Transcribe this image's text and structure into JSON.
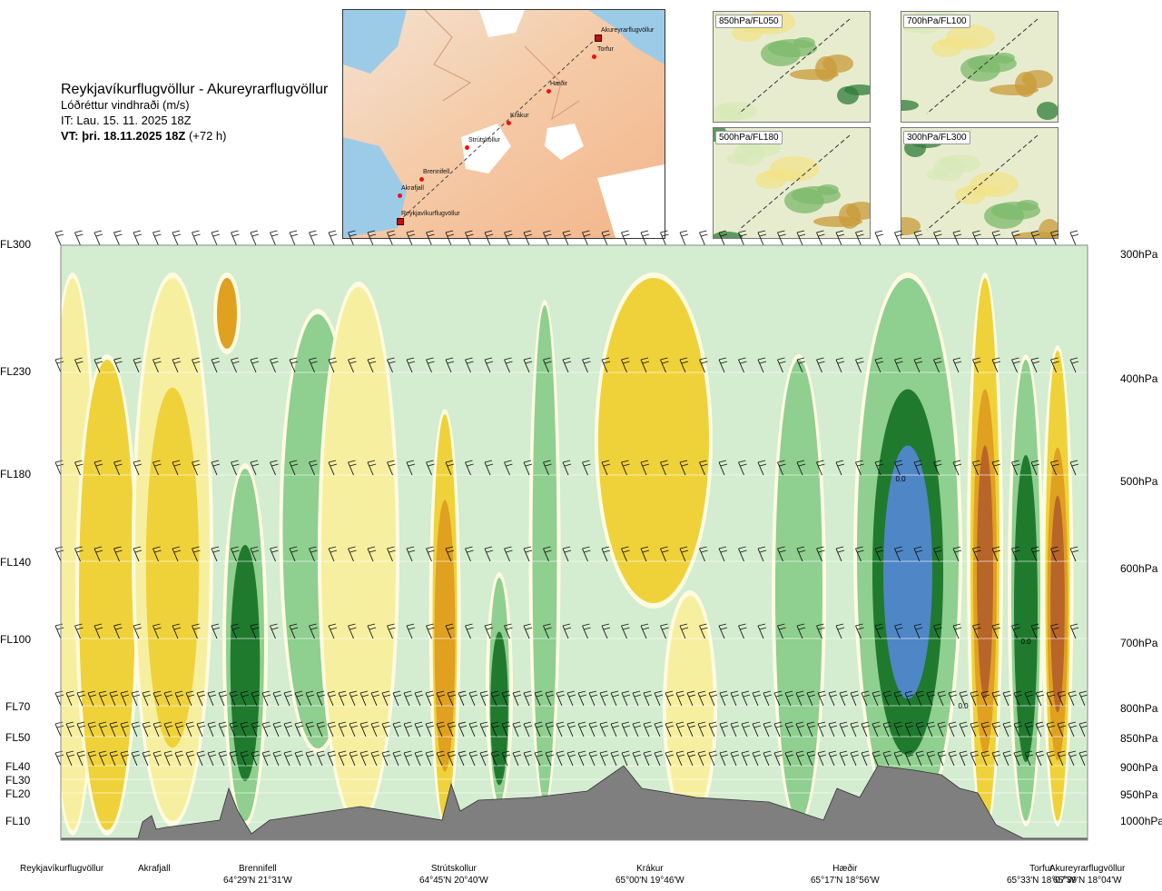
{
  "header": {
    "route": "Reykjavíkurflugvöllur - Akureyrarflugvöllur",
    "parameter": "Lóðréttur vindhraði (m/s)",
    "issue_time": "IT: Lau. 15. 11. 2025 18Z",
    "valid_label": "VT: þri. 18.11.2025 18Z",
    "valid_offset": "(+72 h)"
  },
  "flight_levels": [
    "FL300",
    "FL230",
    "FL180",
    "FL140",
    "FL100",
    "FL70",
    "FL50",
    "FL40",
    "FL30",
    "FL20",
    "FL10"
  ],
  "pressure_levels": [
    "300hPa",
    "400hPa",
    "500hPa",
    "600hPa",
    "700hPa",
    "800hPa",
    "850hPa",
    "900hPa",
    "950hPa",
    "1000hPa"
  ],
  "insets": [
    {
      "label": "850hPa/FL050"
    },
    {
      "label": "700hPa/FL100"
    },
    {
      "label": "500hPa/FL180"
    },
    {
      "label": "300hPa/FL300"
    }
  ],
  "map": {
    "points": [
      {
        "name": "Akureyrarflugvöllur"
      },
      {
        "name": "Torfur"
      },
      {
        "name": "Hæðir"
      },
      {
        "name": "Krákur"
      },
      {
        "name": "Strútskollur"
      },
      {
        "name": "Brennifell"
      },
      {
        "name": "Akrafjall"
      },
      {
        "name": "Reykjavíkurflugvöllur"
      }
    ]
  },
  "locations": [
    {
      "name": "Reykjavíkurflugvöllur",
      "coord": ""
    },
    {
      "name": "Akrafjall",
      "coord": ""
    },
    {
      "name": "Brennifell",
      "coord": "64°29'N 21°31'W"
    },
    {
      "name": "Strútskollur",
      "coord": "64°45'N 20°40'W"
    },
    {
      "name": "Krákur",
      "coord": "65°00'N 19°46'W"
    },
    {
      "name": "Hæðir",
      "coord": "65°17'N 18°56'W"
    },
    {
      "name": "Torfur",
      "coord": "65°33'N 18°07'W"
    },
    {
      "name": "Akureyrarflugvöllur",
      "coord": "65°39'N 18°04'W"
    }
  ],
  "contour_labels": [
    "0.0",
    "0.0",
    "0.0"
  ],
  "colors": {
    "strong_down": "#4f86c6",
    "down": "#1f7a2e",
    "weak_down": "#8fcf8f",
    "very_weak_down": "#d4ecd0",
    "neutral": "#fffbe0",
    "weak_up": "#f7efa0",
    "up": "#efd23a",
    "strong_up": "#e0a020",
    "very_strong_up": "#b8652a",
    "terrain": "#7f7f7f"
  },
  "chart_data": {
    "type": "heatmap",
    "title": "Lóðréttur vindhraði (m/s)",
    "vertical_axis_left": [
      "FL300",
      "FL230",
      "FL180",
      "FL140",
      "FL100",
      "FL70",
      "FL50",
      "FL40",
      "FL30",
      "FL20",
      "FL10"
    ],
    "vertical_axis_right": [
      "300hPa",
      "400hPa",
      "500hPa",
      "600hPa",
      "700hPa",
      "800hPa",
      "850hPa",
      "900hPa",
      "950hPa",
      "1000hPa"
    ],
    "horizontal_axis": [
      "Reykjavíkurflugvöllur",
      "Akrafjall",
      "Brennifell",
      "Strútskollur",
      "Krákur",
      "Hæðir",
      "Torfur",
      "Akureyrarflugvöllur"
    ]
  }
}
